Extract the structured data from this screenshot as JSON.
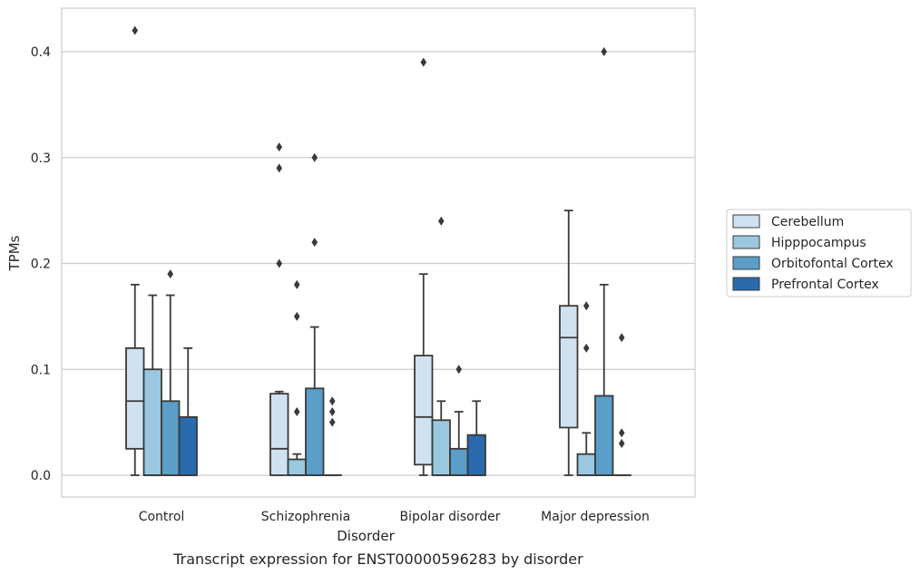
{
  "chart_data": {
    "type": "box",
    "caption": "Transcript expression for ENST00000596283 by disorder",
    "xlabel": "Disorder",
    "ylabel": "TPMs",
    "ylim": [
      -0.02,
      0.443
    ],
    "yticks": [
      0.0,
      0.1,
      0.2,
      0.3,
      0.4
    ],
    "ytick_labels": [
      "0.0",
      "0.1",
      "0.2",
      "0.3",
      "0.4"
    ],
    "grid": "horizontal",
    "legend_position": "right",
    "categories": [
      "Control",
      "Schizophrenia",
      "Bipolar disorder",
      "Major depression"
    ],
    "series": [
      {
        "name": "Cerebellum",
        "color": "#d0e2f2",
        "boxes": [
          {
            "q1": 0.025,
            "median": 0.07,
            "q3": 0.12,
            "whisker_low": 0.0,
            "whisker_high": 0.18,
            "outliers": [
              0.42
            ]
          },
          {
            "q1": 0.0,
            "median": 0.025,
            "q3": 0.077,
            "whisker_low": 0.0,
            "whisker_high": 0.079,
            "outliers": [
              0.2,
              0.29,
              0.31
            ]
          },
          {
            "q1": 0.01,
            "median": 0.055,
            "q3": 0.113,
            "whisker_low": 0.0,
            "whisker_high": 0.19,
            "outliers": [
              0.39
            ]
          },
          {
            "q1": 0.045,
            "median": 0.13,
            "q3": 0.16,
            "whisker_low": 0.0,
            "whisker_high": 0.25,
            "outliers": []
          }
        ]
      },
      {
        "name": "Hipppocampus",
        "color": "#9ac8e0",
        "boxes": [
          {
            "q1": 0.0,
            "median": 0.0,
            "q3": 0.1,
            "whisker_low": 0.0,
            "whisker_high": 0.17,
            "outliers": []
          },
          {
            "q1": 0.0,
            "median": 0.0,
            "q3": 0.015,
            "whisker_low": 0.0,
            "whisker_high": 0.02,
            "outliers": [
              0.06,
              0.15,
              0.18
            ]
          },
          {
            "q1": 0.0,
            "median": 0.0,
            "q3": 0.052,
            "whisker_low": 0.0,
            "whisker_high": 0.07,
            "outliers": [
              0.24
            ]
          },
          {
            "q1": 0.0,
            "median": 0.0,
            "q3": 0.02,
            "whisker_low": 0.0,
            "whisker_high": 0.04,
            "outliers": [
              0.12,
              0.16
            ]
          }
        ]
      },
      {
        "name": "Orbitofontal Cortex",
        "color": "#5a9ec9",
        "boxes": [
          {
            "q1": 0.0,
            "median": 0.0,
            "q3": 0.07,
            "whisker_low": 0.0,
            "whisker_high": 0.17,
            "outliers": [
              0.19
            ]
          },
          {
            "q1": 0.0,
            "median": 0.0,
            "q3": 0.082,
            "whisker_low": 0.0,
            "whisker_high": 0.14,
            "outliers": [
              0.22,
              0.3
            ]
          },
          {
            "q1": 0.0,
            "median": 0.0,
            "q3": 0.025,
            "whisker_low": 0.0,
            "whisker_high": 0.06,
            "outliers": [
              0.1
            ]
          },
          {
            "q1": 0.0,
            "median": 0.0,
            "q3": 0.075,
            "whisker_low": 0.0,
            "whisker_high": 0.18,
            "outliers": [
              0.4
            ]
          }
        ]
      },
      {
        "name": "Prefrontal Cortex",
        "color": "#2a6aad",
        "boxes": [
          {
            "q1": 0.0,
            "median": 0.0,
            "q3": 0.055,
            "whisker_low": 0.0,
            "whisker_high": 0.12,
            "outliers": []
          },
          {
            "q1": 0.0,
            "median": 0.0,
            "q3": 0.0,
            "whisker_low": 0.0,
            "whisker_high": 0.0,
            "outliers": [
              0.05,
              0.06,
              0.07
            ]
          },
          {
            "q1": 0.0,
            "median": 0.0,
            "q3": 0.038,
            "whisker_low": 0.0,
            "whisker_high": 0.07,
            "outliers": []
          },
          {
            "q1": 0.0,
            "median": 0.0,
            "q3": 0.0,
            "whisker_low": 0.0,
            "whisker_high": 0.0,
            "outliers": [
              0.03,
              0.04,
              0.13
            ]
          }
        ]
      }
    ]
  }
}
